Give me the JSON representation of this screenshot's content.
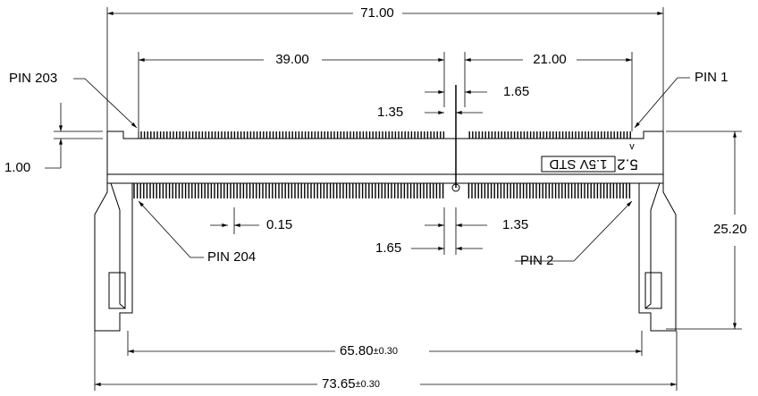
{
  "dimensions": {
    "overall_length": "71.00",
    "left_span": "39.00",
    "right_span": "21.00",
    "key_gap_top_left": "1.35",
    "key_gap_top_right": "1.65",
    "step_height": "1.00",
    "pin_width": "0.15",
    "key_gap_bottom_right": "1.35",
    "key_gap_bottom_left": "1.65",
    "height": "25.20",
    "latch_span": "65.80",
    "latch_span_tolerance": "±0.30",
    "total_width": "73.65",
    "total_width_tolerance": "±0.30"
  },
  "pins": {
    "top_left": "PIN 203",
    "top_right": "PIN 1",
    "bottom_left": "PIN 204",
    "bottom_right": "PIN 2"
  },
  "marking": {
    "number": "5.2",
    "voltage": "1.5V STD"
  }
}
